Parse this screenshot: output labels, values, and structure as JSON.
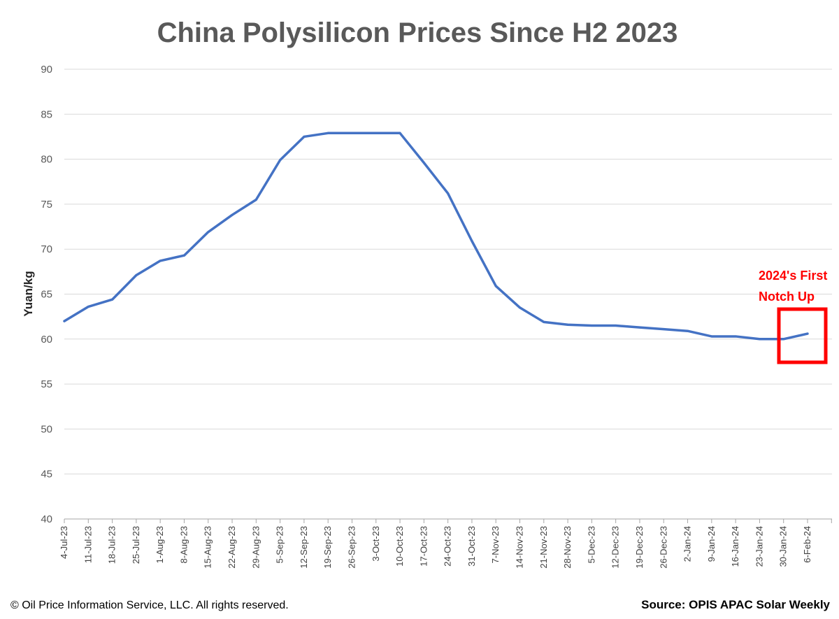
{
  "chart_data": {
    "type": "line",
    "title": "China Polysilicon Prices Since H2 2023",
    "ylabel": "Yuan/kg",
    "xlabel": "",
    "ylim": [
      40,
      90
    ],
    "yticks": [
      40,
      45,
      50,
      55,
      60,
      65,
      70,
      75,
      80,
      85,
      90
    ],
    "grid": "horizontal",
    "categories": [
      "4-Jul-23",
      "11-Jul-23",
      "18-Jul-23",
      "25-Jul-23",
      "1-Aug-23",
      "8-Aug-23",
      "15-Aug-23",
      "22-Aug-23",
      "29-Aug-23",
      "5-Sep-23",
      "12-Sep-23",
      "19-Sep-23",
      "26-Sep-23",
      "3-Oct-23",
      "10-Oct-23",
      "17-Oct-23",
      "24-Oct-23",
      "31-Oct-23",
      "7-Nov-23",
      "14-Nov-23",
      "21-Nov-23",
      "28-Nov-23",
      "5-Dec-23",
      "12-Dec-23",
      "19-Dec-23",
      "26-Dec-23",
      "2-Jan-24",
      "9-Jan-24",
      "16-Jan-24",
      "23-Jan-24",
      "30-Jan-24",
      "6-Feb-24"
    ],
    "series": [
      {
        "name": "",
        "color": "#4472c4",
        "values": [
          62.0,
          63.6,
          64.4,
          67.1,
          68.7,
          69.3,
          71.9,
          73.8,
          75.5,
          79.9,
          82.5,
          82.9,
          82.9,
          82.9,
          82.9,
          79.6,
          76.2,
          70.9,
          65.9,
          63.5,
          61.9,
          61.6,
          61.5,
          61.5,
          61.3,
          61.1,
          60.9,
          60.3,
          60.3,
          60.0,
          60.0,
          60.6
        ]
      }
    ],
    "annotation": {
      "text_line1": "2024's First",
      "text_line2": "Notch Up",
      "color": "#ff0000",
      "highlight_from": "30-Jan-24",
      "highlight_to": "6-Feb-24"
    }
  },
  "footer": {
    "copyright": "© Oil Price Information Service, LLC.  All rights reserved.",
    "source": "Source: OPIS APAC Solar Weekly"
  }
}
